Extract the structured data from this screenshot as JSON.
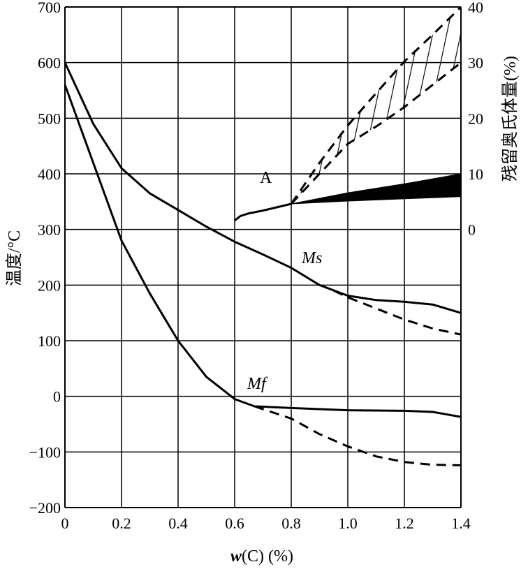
{
  "chart_data": {
    "type": "line",
    "title": "",
    "xlabel": "w(C) (%)",
    "xlabel_var": "w",
    "xlabel_rest": "(C) (%)",
    "ylabel": "温度/°C",
    "y2label": "残留奥氏体量(%)",
    "xlim": [
      0,
      1.4
    ],
    "ylim": [
      -200,
      700
    ],
    "y2lim": [
      0,
      40
    ],
    "y2_display_range": [
      0,
      40
    ],
    "grid": true,
    "xticks": [
      "0",
      "0.2",
      "0.4",
      "0.6",
      "0.8",
      "1.0",
      "1.2",
      "1.4"
    ],
    "xtick_values": [
      0,
      0.2,
      0.4,
      0.6,
      0.8,
      1.0,
      1.2,
      1.4
    ],
    "yticks": [
      "700",
      "600",
      "500",
      "400",
      "300",
      "200",
      "100",
      "0",
      "−100",
      "−200"
    ],
    "ytick_values": [
      700,
      600,
      500,
      400,
      300,
      200,
      100,
      0,
      -100,
      -200
    ],
    "y2ticks": [
      "40",
      "30",
      "20",
      "10",
      "0"
    ],
    "y2tick_values": [
      40,
      30,
      20,
      10,
      0
    ],
    "annotations": {
      "ms": "Ms",
      "mf": "Mf",
      "a": "A"
    },
    "series": [
      {
        "name": "Ms",
        "axis": "left",
        "style": "solid",
        "x": [
          0,
          0.1,
          0.2,
          0.3,
          0.4,
          0.5,
          0.6,
          0.7,
          0.8,
          0.9,
          1.0,
          1.1,
          1.2,
          1.3,
          1.4
        ],
        "y": [
          600,
          490,
          410,
          365,
          335,
          305,
          278,
          255,
          231,
          200,
          181,
          173,
          170,
          165,
          150
        ]
      },
      {
        "name": "Ms (dashed)",
        "axis": "left",
        "style": "dashed",
        "x": [
          0.95,
          1.0,
          1.1,
          1.2,
          1.3,
          1.4
        ],
        "y": [
          190,
          178,
          158,
          138,
          122,
          111
        ]
      },
      {
        "name": "Mf",
        "axis": "left",
        "style": "solid",
        "x": [
          0,
          0.1,
          0.2,
          0.3,
          0.4,
          0.5,
          0.6,
          0.67,
          0.8,
          1.0,
          1.2,
          1.3,
          1.4
        ],
        "y": [
          560,
          420,
          280,
          185,
          100,
          35,
          -5,
          -18,
          -21,
          -25,
          -26,
          -28,
          -37
        ]
      },
      {
        "name": "Mf (dashed)",
        "axis": "left",
        "style": "dashed",
        "x": [
          0.67,
          0.8,
          0.9,
          1.0,
          1.1,
          1.2,
          1.3,
          1.4
        ],
        "y": [
          -18,
          -40,
          -68,
          -90,
          -108,
          -118,
          -123,
          -124
        ]
      },
      {
        "name": "Retained austenite",
        "axis": "right",
        "style": "solid",
        "x": [
          0.6,
          0.62,
          0.65,
          0.7,
          0.8
        ],
        "y": [
          1.6,
          2.4,
          2.9,
          3.4,
          4.6
        ]
      },
      {
        "name": "Retained austenite band (solid)",
        "axis": "right",
        "style": "filled",
        "x": [
          0.8,
          1.0,
          1.2,
          1.4
        ],
        "y_low": [
          4.6,
          5.1,
          5.5,
          5.9
        ],
        "y_high": [
          4.6,
          6.6,
          8.2,
          10
        ]
      },
      {
        "name": "Retained austenite band (hatched)",
        "axis": "right",
        "style": "hatched-dashed",
        "x": [
          0.8,
          0.9,
          1.0,
          1.1,
          1.2,
          1.3,
          1.4
        ],
        "y_low": [
          4.6,
          10,
          15.4,
          18.5,
          22,
          26,
          30
        ],
        "y_high": [
          4.6,
          12,
          18.7,
          24.5,
          30.2,
          35,
          40
        ]
      }
    ]
  }
}
